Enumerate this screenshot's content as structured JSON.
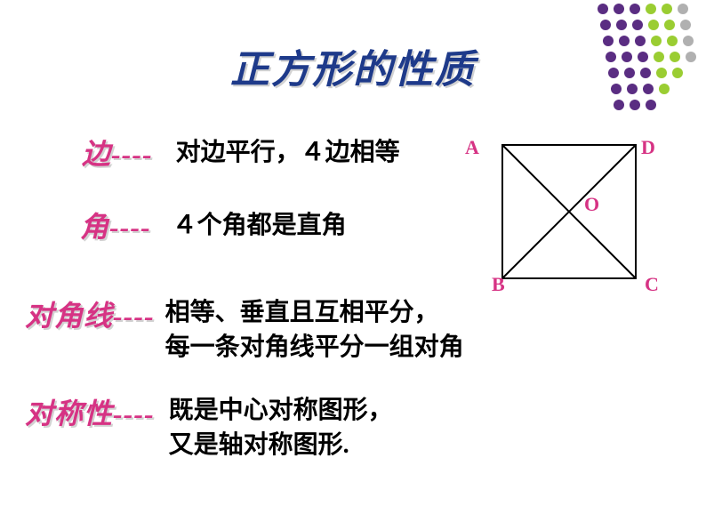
{
  "title": "正方形的性质",
  "properties": {
    "edge": {
      "label": "边----",
      "desc": "对边平行，４边相等"
    },
    "angle": {
      "label": "角----",
      "desc": "４个角都是直角"
    },
    "diagonal": {
      "label": "对角线----",
      "desc": "相等、垂直且互相平分，\n每一条对角线平分一组对角"
    },
    "symmetry": {
      "label": "对称性----",
      "desc": "既是中心对称图形，\n又是轴对称图形."
    }
  },
  "diagram": {
    "vertices": {
      "A": "A",
      "B": "B",
      "C": "C",
      "D": "D",
      "O": "O"
    },
    "square_size": 150,
    "stroke": "#000000",
    "stroke_width": 2
  },
  "decoration": {
    "dot_colors": [
      "#5a2d82",
      "#5a2d82",
      "#5a2d82",
      "#9acd32",
      "#9acd32",
      "#b0b0b0"
    ],
    "dot_radius": 6,
    "spacing": 18
  },
  "colors": {
    "title": "#1e3a8a",
    "label": "#d63384",
    "desc": "#000000",
    "vertex": "#d63384",
    "shadow": "rgba(180,180,180,0.6)"
  },
  "fonts": {
    "title_size": 44,
    "label_size": 32,
    "desc_size": 28,
    "vertex_size": 22
  }
}
